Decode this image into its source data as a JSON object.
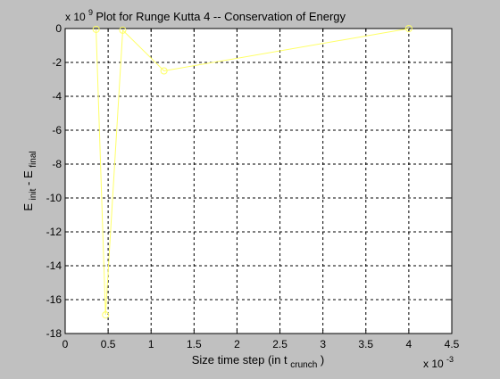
{
  "figure": {
    "background": "#c0c0c0",
    "axes_background": "#ffffff",
    "series_color": "#ffff66"
  },
  "chart_data": {
    "type": "line",
    "title": "Plot for Runge Kutta 4 -- Conservation of Energy",
    "xlabel": {
      "main": "Size time step (in t",
      "sub": "crunch",
      "close": ")"
    },
    "ylabel": {
      "main1": "E",
      "sub1": "init",
      "middle": " - E",
      "sub2": "final"
    },
    "x_multiplier": {
      "base": "x 10",
      "exp": "-3"
    },
    "y_multiplier": {
      "base": "x 10",
      "exp": "9"
    },
    "xlim": [
      0,
      4.5
    ],
    "ylim": [
      -18,
      0
    ],
    "xticks": [
      0,
      0.5,
      1,
      1.5,
      2,
      2.5,
      3,
      3.5,
      4,
      4.5
    ],
    "xtick_labels": [
      "0",
      "0.5",
      "1",
      "1.5",
      "2",
      "2.5",
      "3",
      "3.5",
      "4",
      "4.5"
    ],
    "yticks": [
      0,
      -2,
      -4,
      -6,
      -8,
      -10,
      -12,
      -14,
      -16,
      -18
    ],
    "ytick_labels": [
      "0",
      "-2",
      "-4",
      "-6",
      "-8",
      "-10",
      "-12",
      "-14",
      "-16",
      "-18"
    ],
    "grid": true,
    "marker": "circle",
    "series": [
      {
        "x": [
          0.36,
          0.47,
          0.67,
          1.15,
          4.0
        ],
        "y": [
          -0.05,
          -16.9,
          -0.1,
          -2.5,
          0.0
        ]
      }
    ]
  }
}
